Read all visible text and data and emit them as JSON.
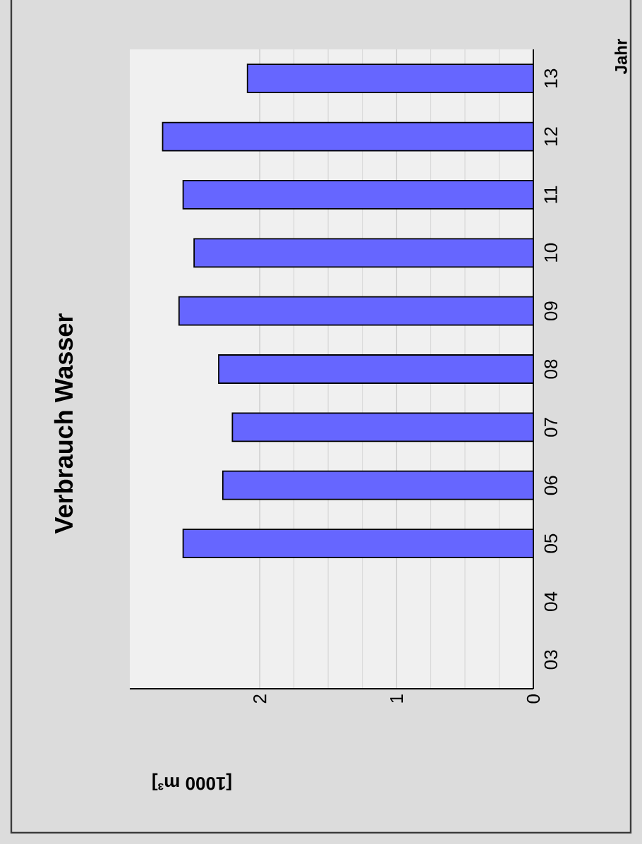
{
  "chart_data": {
    "type": "bar",
    "orientation": "horizontal",
    "title": "Verbrauch Wasser",
    "xlabel": "[1000 m³]",
    "ylabel": "Jahr",
    "categories": [
      "13",
      "12",
      "11",
      "10",
      "09",
      "08",
      "07",
      "06",
      "05",
      "04",
      "03"
    ],
    "values": [
      2.09,
      2.71,
      2.56,
      2.48,
      2.59,
      2.3,
      2.2,
      2.27,
      2.56,
      null,
      null
    ],
    "color": "#6666ff",
    "xlim": [
      2.95,
      0
    ],
    "xticks": [
      2,
      1,
      0
    ],
    "grid": "x"
  }
}
